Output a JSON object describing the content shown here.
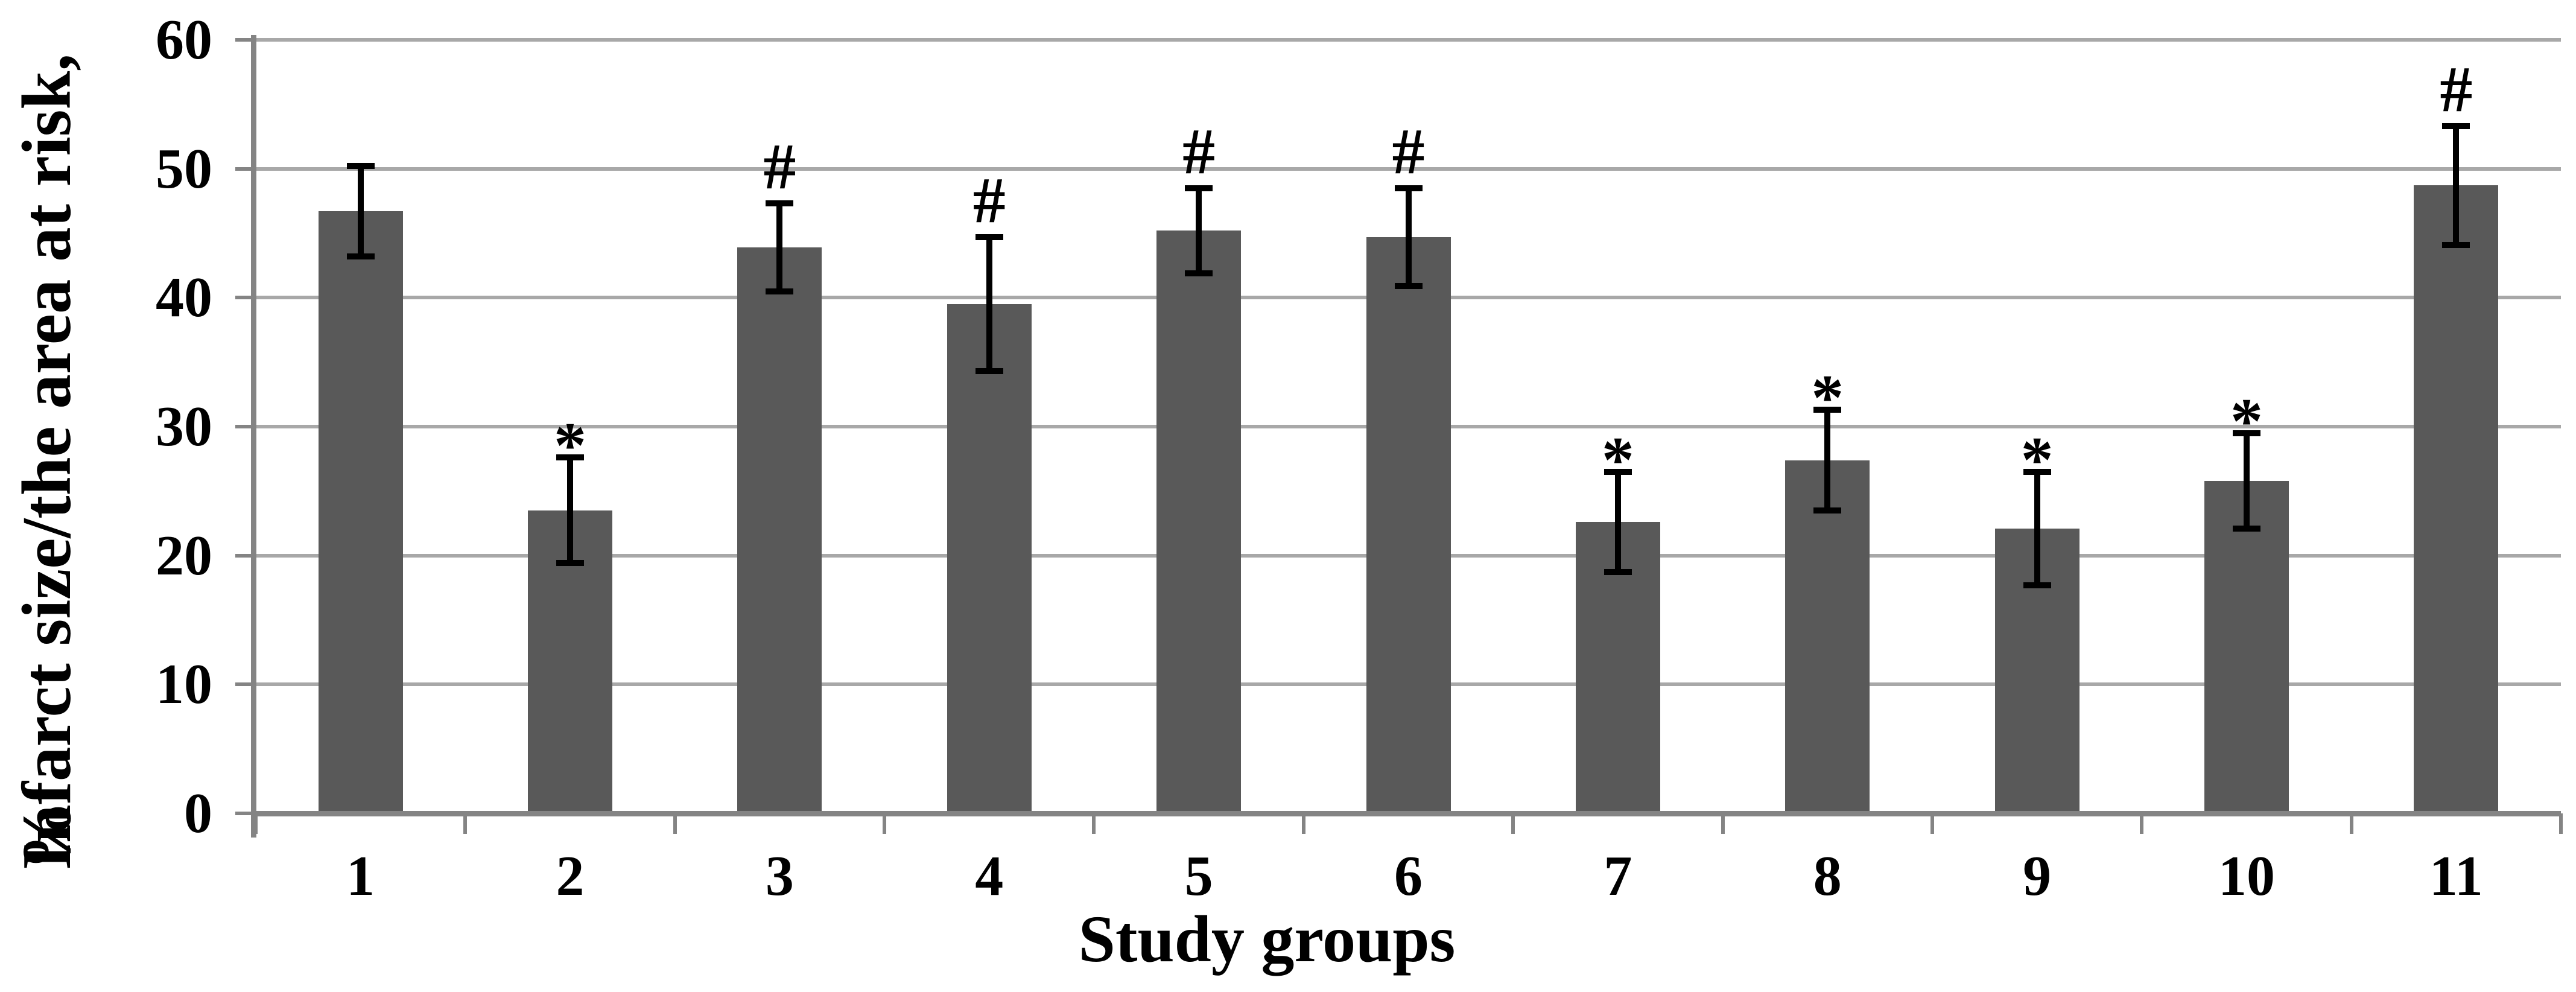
{
  "chart_data": {
    "type": "bar",
    "title": "",
    "xlabel": "Study groups",
    "ylabel_line1": "Infarct size/the area at risk,",
    "ylabel_line2": "%",
    "categories": [
      "1",
      "2",
      "3",
      "4",
      "5",
      "6",
      "7",
      "8",
      "9",
      "10",
      "11"
    ],
    "values": [
      46.7,
      23.5,
      43.9,
      39.5,
      45.2,
      44.7,
      22.6,
      27.4,
      22.1,
      25.8,
      48.7
    ],
    "errors": [
      3.5,
      4.1,
      3.4,
      5.2,
      3.3,
      3.8,
      3.9,
      3.9,
      4.4,
      3.7,
      4.6
    ],
    "annotations": [
      "",
      "*",
      "#",
      "#",
      "#",
      "#",
      "*",
      "*",
      "*",
      "*",
      "#"
    ],
    "ylim": [
      0,
      60
    ],
    "ytick_step": 10,
    "ytick_labels": [
      "0",
      "10",
      "20",
      "30",
      "40",
      "50",
      "60"
    ],
    "grid": true,
    "legend": null,
    "bar_color": "#595959",
    "grid_color": "#a8a8a8",
    "axis_color": "#848484",
    "error_color": "#000000",
    "text_color": "#000000",
    "background": "#ffffff"
  }
}
